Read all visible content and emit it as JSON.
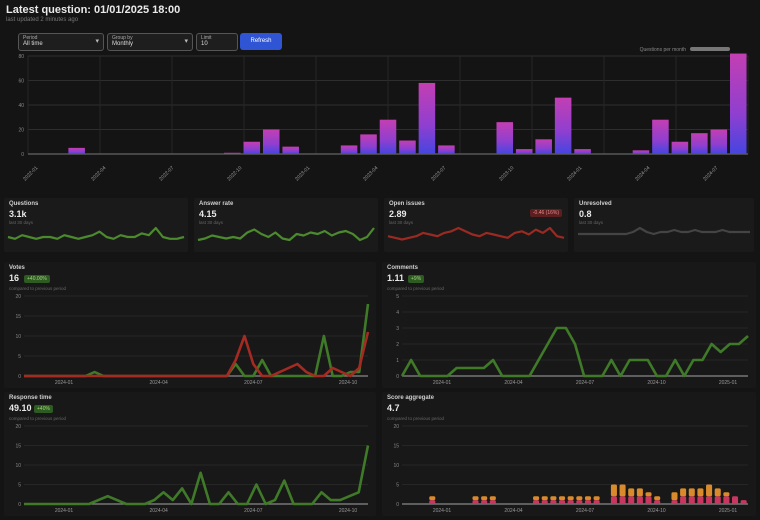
{
  "header": {
    "title": "Latest question: 01/01/2025 18:00",
    "subtitle": "last updated 2 minutes ago"
  },
  "filters": [
    {
      "label": "Period",
      "value": "All time"
    },
    {
      "label": "Group by",
      "value": "Monthly"
    },
    {
      "label": "Limit",
      "value": "10"
    }
  ],
  "apply_label": "Refresh",
  "top_chart": {
    "legend": "Questions per month",
    "y_ticks": [
      "0",
      "20",
      "40",
      "60",
      "80"
    ],
    "x_labels": [
      "2022-01",
      "2022-04",
      "2022-07",
      "2022-10",
      "2023-01",
      "2023-04",
      "2023-07",
      "2023-10",
      "2024-01",
      "2024-04",
      "2024-07"
    ]
  },
  "chart_data": {
    "type": "bar",
    "title": "",
    "ylim": [
      0,
      80
    ],
    "values": [
      0,
      0,
      5,
      0,
      0,
      0,
      0,
      0,
      0,
      0,
      1,
      10,
      20,
      6,
      0,
      0,
      7,
      16,
      28,
      11,
      58,
      7,
      0,
      0,
      26,
      4,
      12,
      46,
      4,
      0,
      0,
      3,
      28,
      10,
      17,
      20,
      82
    ]
  },
  "tiles": [
    {
      "name": "Questions",
      "value": "3.1k",
      "sub": "last 30 days",
      "badge": "",
      "color": "#4c8a2e",
      "spark": [
        5,
        4,
        6,
        5,
        4,
        5,
        5,
        4,
        6,
        5,
        4,
        5,
        6,
        8,
        5,
        4,
        6,
        5,
        5,
        7,
        6,
        10,
        5,
        4,
        4,
        5
      ]
    },
    {
      "name": "Answer rate",
      "value": "4.15",
      "sub": "last 30 days",
      "badge": "",
      "color": "#4c8a2e",
      "spark": [
        4,
        5,
        7,
        6,
        5,
        6,
        5,
        9,
        11,
        8,
        6,
        9,
        5,
        4,
        8,
        7,
        9,
        8,
        10,
        7,
        9,
        10,
        8,
        4,
        6,
        12
      ]
    },
    {
      "name": "Open issues",
      "value": "2.89",
      "sub": "last 30 days",
      "badge": "-0.46 (16%)",
      "color": "#9a2a22",
      "spark": [
        6,
        5,
        4,
        5,
        6,
        8,
        7,
        6,
        8,
        9,
        11,
        9,
        7,
        6,
        8,
        7,
        6,
        5,
        8,
        9,
        7,
        10,
        8,
        11,
        6,
        5
      ]
    },
    {
      "name": "Unresolved",
      "value": "0.8",
      "sub": "last 30 days",
      "badge": "",
      "color": "#444",
      "spark": [
        6,
        6,
        6,
        6,
        6,
        6,
        6,
        6,
        7,
        9,
        7,
        6,
        7,
        7,
        8,
        7,
        7,
        8,
        7,
        7,
        7,
        8,
        7,
        7,
        7,
        7
      ]
    }
  ],
  "panels": [
    {
      "name": "Votes",
      "value": "16",
      "badge": "+40.00%",
      "sub": "compared to previous period",
      "x_labels": [
        "2024-01",
        "2024-04",
        "2024-07",
        "2024-10"
      ],
      "y_ticks": [
        "0",
        "5",
        "10",
        "15",
        "20"
      ],
      "green": [
        0,
        0,
        0,
        0,
        0,
        0,
        0,
        0,
        1,
        0,
        0,
        0,
        0,
        0,
        0,
        0,
        0,
        0,
        0,
        0,
        0,
        0,
        0,
        0,
        3,
        0,
        0,
        4,
        0,
        0,
        0,
        0,
        0,
        0,
        10,
        0,
        0,
        1,
        1,
        18
      ],
      "red": [
        0,
        0,
        0,
        0,
        0,
        0,
        0,
        0,
        0,
        0,
        0,
        0,
        0,
        0,
        0,
        0,
        0,
        0,
        0,
        0,
        0,
        0,
        0,
        0,
        4,
        10,
        3,
        0,
        0,
        1,
        2,
        3,
        1,
        0,
        0,
        2,
        1,
        0,
        2,
        11
      ]
    },
    {
      "name": "Comments",
      "value": "1.11",
      "badge": "+9%",
      "sub": "compared to previous period",
      "x_labels": [
        "2024-01",
        "2024-04",
        "2024-07",
        "2024-10",
        "2025-01"
      ],
      "y_ticks": [
        "0",
        "1",
        "2",
        "3",
        "4",
        "5"
      ],
      "green": [
        0,
        1,
        0,
        0,
        0,
        0,
        0.5,
        0.5,
        0.5,
        0.5,
        1,
        0,
        0,
        0,
        0,
        1,
        2,
        3,
        3,
        2,
        0,
        0,
        0,
        1,
        0,
        1,
        1,
        1,
        0,
        0,
        1,
        0,
        1,
        1,
        2,
        1.5,
        2,
        2,
        2.5
      ]
    },
    {
      "name": "Response time",
      "value": "49.10",
      "badge": "+40%",
      "sub": "compared to previous period",
      "x_labels": [
        "2024-01",
        "2024-04",
        "2024-07",
        "2024-10"
      ],
      "y_ticks": [
        "0",
        "5",
        "10",
        "15",
        "20"
      ],
      "green": [
        0,
        0,
        0,
        0,
        0,
        0,
        0,
        0,
        1,
        2,
        1,
        0,
        0,
        0,
        1,
        3,
        1,
        4,
        0,
        8,
        0,
        0,
        3,
        0,
        0,
        5,
        0,
        1,
        6,
        0,
        0,
        0,
        3,
        1,
        1,
        2,
        3,
        15
      ]
    },
    {
      "name": "Score aggregate",
      "value": "4.7",
      "badge": "",
      "sub": "compared to previous period",
      "x_labels": [
        "2024-01",
        "2024-04",
        "2024-07",
        "2024-10",
        "2025-01"
      ],
      "y_ticks": [
        "0",
        "5",
        "10",
        "15",
        "20"
      ],
      "stack_a": [
        0,
        0,
        0,
        1,
        0,
        0,
        0,
        0,
        1,
        1,
        1,
        0,
        0,
        0,
        0,
        1,
        1,
        1,
        1,
        1,
        1,
        1,
        1,
        0,
        2,
        2,
        2,
        2,
        2,
        1,
        0,
        1,
        2,
        2,
        2,
        2,
        2,
        2,
        2,
        1
      ],
      "stack_b": [
        0,
        0,
        0,
        1,
        0,
        0,
        0,
        0,
        1,
        1,
        1,
        0,
        0,
        0,
        0,
        1,
        1,
        1,
        1,
        1,
        1,
        1,
        1,
        0,
        3,
        3,
        2,
        2,
        1,
        1,
        0,
        2,
        2,
        2,
        2,
        3,
        2,
        1,
        0,
        0
      ]
    }
  ]
}
